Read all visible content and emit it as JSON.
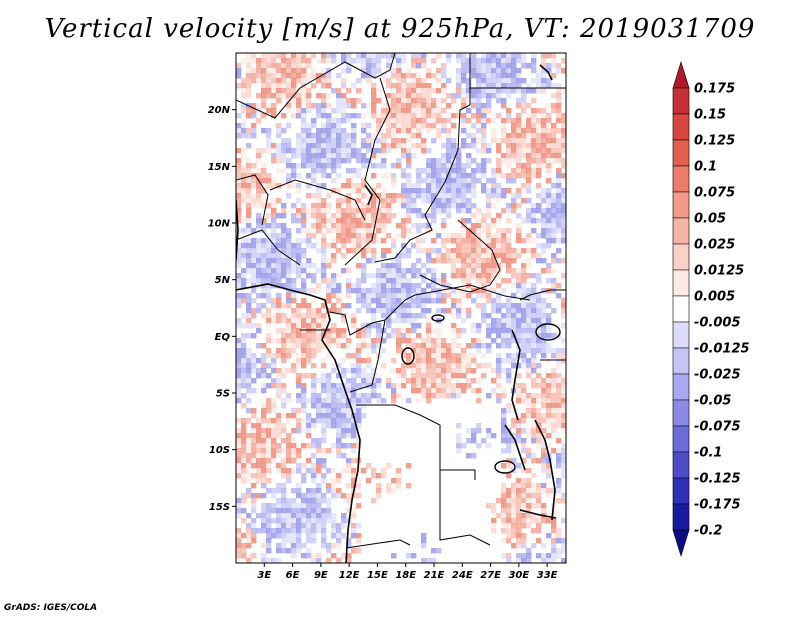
{
  "title": "Vertical velocity [m/s] at 925hPa, VT: 2019031709",
  "credit": "GrADS: IGES/COLA",
  "map": {
    "lon_range": [
      0,
      35
    ],
    "lat_range": [
      -20,
      25
    ],
    "lat_ticks": [
      {
        "lat": 20,
        "label": "20N"
      },
      {
        "lat": 15,
        "label": "15N"
      },
      {
        "lat": 10,
        "label": "10N"
      },
      {
        "lat": 5,
        "label": "5N"
      },
      {
        "lat": 0,
        "label": "EQ"
      },
      {
        "lat": -5,
        "label": "5S"
      },
      {
        "lat": -10,
        "label": "10S"
      },
      {
        "lat": -15,
        "label": "15S"
      }
    ],
    "lon_ticks": [
      {
        "lon": 3,
        "label": "3E"
      },
      {
        "lon": 6,
        "label": "6E"
      },
      {
        "lon": 9,
        "label": "9E"
      },
      {
        "lon": 12,
        "label": "12E"
      },
      {
        "lon": 15,
        "label": "15E"
      },
      {
        "lon": 18,
        "label": "18E"
      },
      {
        "lon": 21,
        "label": "21E"
      },
      {
        "lon": 24,
        "label": "24E"
      },
      {
        "lon": 27,
        "label": "27E"
      },
      {
        "lon": 30,
        "label": "30E"
      },
      {
        "lon": 33,
        "label": "33E"
      }
    ]
  },
  "colorbar": {
    "labels": [
      "0.175",
      "0.15",
      "0.125",
      "0.1",
      "0.075",
      "0.05",
      "0.025",
      "0.0125",
      "0.005",
      "-0.005",
      "-0.0125",
      "-0.025",
      "-0.05",
      "-0.075",
      "-0.1",
      "-0.125",
      "-0.175",
      "-0.2"
    ],
    "colors": [
      "#b2182b",
      "#c62f35",
      "#d6473f",
      "#e2604e",
      "#ec7d6a",
      "#f39a8a",
      "#f7b5a8",
      "#fbd0c6",
      "#fde8e2",
      "#ffffff",
      "#dcdcfa",
      "#c4c4f6",
      "#a9a9ef",
      "#8b8be6",
      "#6c6cd9",
      "#4d4dc8",
      "#3030b4",
      "#1a1a9e",
      "#0d0d85"
    ]
  }
}
